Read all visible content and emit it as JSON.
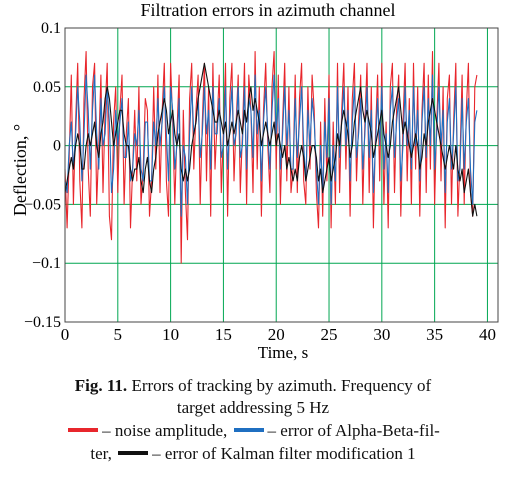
{
  "chart_data": {
    "type": "line",
    "title": "Filtration errors in azimuth channel",
    "xlabel": "Time, s",
    "ylabel": "Deflection, °",
    "xlim": [
      0,
      41
    ],
    "ylim": [
      -0.15,
      0.1
    ],
    "x_ticks": [
      "0",
      "5",
      "10",
      "15",
      "20",
      "25",
      "30",
      "35",
      "40"
    ],
    "x_tick_values": [
      0,
      5,
      10,
      15,
      20,
      25,
      30,
      35,
      40
    ],
    "y_ticks": [
      "0.1",
      "0.05",
      "0",
      "−0.05",
      "−0.1",
      "−0.15"
    ],
    "y_tick_values": [
      0.1,
      0.05,
      0,
      -0.05,
      -0.1,
      -0.15
    ],
    "grid": true,
    "grid_color": "#00a651",
    "series": [
      {
        "name": "noise amplitude",
        "color": "#e8262c",
        "x_step": 0.2,
        "values": [
          -0.02,
          -0.07,
          -0.01,
          0.06,
          -0.05,
          0.02,
          0.07,
          -0.03,
          -0.07,
          0.04,
          0.08,
          -0.02,
          -0.06,
          0.05,
          0.07,
          -0.05,
          0.0,
          0.06,
          -0.04,
          0.03,
          0.07,
          -0.06,
          -0.08,
          0.02,
          0.05,
          -0.04,
          0.03,
          0.06,
          -0.05,
          0.01,
          0.04,
          -0.07,
          -0.02,
          0.03,
          -0.03,
          0.05,
          -0.05,
          -0.02,
          0.04,
          0.03,
          -0.06,
          -0.03,
          0.05,
          -0.02,
          0.06,
          -0.04,
          0.03,
          0.07,
          -0.03,
          -0.06,
          0.07,
          0.02,
          -0.05,
          0.01,
          0.06,
          -0.1,
          0.03,
          -0.04,
          -0.08,
          0.04,
          0.07,
          -0.02,
          0.03,
          0.06,
          -0.05,
          0.02,
          0.07,
          -0.03,
          0.05,
          -0.06,
          0.07,
          -0.02,
          0.02,
          0.06,
          -0.04,
          0.01,
          0.07,
          -0.06,
          0.04,
          0.07,
          -0.03,
          0.02,
          0.06,
          -0.04,
          0.01,
          0.07,
          -0.05,
          0.06,
          0.03,
          -0.04,
          0.08,
          -0.02,
          0.05,
          -0.06,
          0.03,
          0.07,
          0.0,
          -0.04,
          0.05,
          0.08,
          -0.02,
          0.06,
          -0.05,
          0.02,
          0.07,
          -0.03,
          0.05,
          -0.04,
          -0.02,
          0.06,
          -0.04,
          0.04,
          0.07,
          -0.03,
          -0.05,
          0.05,
          -0.02,
          0.06,
          0.03,
          -0.04,
          -0.07,
          0.02,
          -0.06,
          0.04,
          -0.03,
          0.06,
          -0.07,
          0.02,
          -0.05,
          0.07,
          -0.04,
          0.03,
          0.07,
          -0.02,
          0.05,
          -0.06,
          0.04,
          0.07,
          -0.03,
          0.02,
          0.06,
          -0.05,
          0.02,
          0.07,
          -0.04,
          0.05,
          -0.07,
          0.01,
          0.06,
          -0.03,
          0.07,
          -0.05,
          0.02,
          -0.07,
          0.05,
          0.07,
          -0.04,
          0.03,
          0.06,
          -0.06,
          0.02,
          0.07,
          -0.03,
          0.04,
          -0.05,
          0.07,
          -0.02,
          0.05,
          -0.06,
          0.03,
          0.07,
          -0.04,
          0.06,
          -0.02,
          0.08,
          -0.05,
          0.02,
          0.07,
          -0.03,
          0.05,
          -0.07,
          0.04,
          0.06,
          -0.05,
          0.02,
          0.07,
          -0.06,
          -0.01,
          0.06,
          -0.05,
          0.03,
          0.07,
          -0.04,
          -0.06,
          0.05,
          0.06
        ]
      },
      {
        "name": "error of Alpha-Beta-filter",
        "color": "#1f6fc1",
        "x_step": 0.2,
        "values": [
          -0.03,
          -0.04,
          0.0,
          0.02,
          -0.02,
          0.01,
          0.05,
          0.02,
          -0.03,
          0.01,
          0.06,
          0.03,
          -0.02,
          0.03,
          0.06,
          0.01,
          -0.02,
          0.04,
          0.0,
          0.01,
          0.05,
          0.02,
          -0.04,
          -0.02,
          0.03,
          0.0,
          0.02,
          0.04,
          -0.01,
          -0.01,
          0.02,
          -0.03,
          -0.02,
          0.01,
          0.0,
          0.03,
          -0.02,
          -0.03,
          0.02,
          0.02,
          -0.03,
          -0.03,
          0.02,
          0.0,
          0.04,
          0.0,
          0.02,
          0.05,
          0.01,
          -0.03,
          0.05,
          0.03,
          -0.02,
          0.0,
          0.04,
          -0.06,
          0.0,
          -0.01,
          -0.05,
          0.01,
          0.05,
          0.01,
          0.02,
          0.04,
          -0.01,
          0.01,
          0.05,
          0.01,
          0.03,
          -0.02,
          0.05,
          0.01,
          0.01,
          0.04,
          -0.01,
          0.0,
          0.05,
          -0.02,
          0.02,
          0.05,
          0.0,
          0.01,
          0.05,
          -0.01,
          0.0,
          0.05,
          -0.02,
          0.04,
          0.03,
          -0.01,
          0.06,
          0.01,
          0.03,
          -0.03,
          0.02,
          0.05,
          0.01,
          -0.02,
          0.03,
          0.06,
          0.01,
          0.04,
          -0.02,
          0.01,
          0.05,
          0.0,
          0.03,
          -0.02,
          -0.02,
          0.04,
          -0.01,
          0.02,
          0.05,
          0.0,
          -0.03,
          0.03,
          0.0,
          0.04,
          0.02,
          -0.02,
          -0.05,
          0.0,
          -0.04,
          0.02,
          -0.01,
          0.04,
          -0.05,
          0.0,
          -0.03,
          0.05,
          -0.01,
          0.02,
          0.05,
          0.0,
          0.03,
          -0.03,
          0.02,
          0.05,
          -0.01,
          0.01,
          0.04,
          -0.02,
          0.01,
          0.05,
          -0.01,
          0.03,
          -0.04,
          0.0,
          0.04,
          0.0,
          0.05,
          -0.02,
          0.01,
          -0.04,
          0.03,
          0.05,
          -0.01,
          0.02,
          0.04,
          -0.03,
          0.0,
          0.05,
          0.0,
          0.03,
          -0.02,
          0.05,
          0.0,
          0.03,
          -0.03,
          0.02,
          0.05,
          -0.01,
          0.04,
          0.0,
          0.06,
          -0.02,
          0.01,
          0.05,
          0.0,
          0.03,
          -0.04,
          0.02,
          0.04,
          -0.02,
          0.01,
          0.05,
          -0.03,
          -0.02,
          0.04,
          -0.02,
          0.02,
          0.04,
          -0.02,
          -0.05,
          0.02,
          0.03
        ]
      },
      {
        "name": "error of Kalman filter modification 1",
        "color": "#111111",
        "x_step": 0.2,
        "values": [
          -0.04,
          -0.03,
          -0.02,
          -0.01,
          -0.02,
          0.0,
          0.01,
          0.0,
          -0.02,
          -0.02,
          0.0,
          0.01,
          0.0,
          0.01,
          0.02,
          0.0,
          -0.01,
          0.01,
          0.02,
          0.04,
          0.05,
          0.04,
          0.02,
          0.0,
          0.01,
          0.02,
          0.03,
          0.03,
          0.01,
          0.0,
          0.0,
          -0.02,
          -0.03,
          -0.02,
          -0.02,
          -0.01,
          -0.03,
          -0.04,
          -0.02,
          -0.01,
          -0.03,
          -0.04,
          -0.02,
          -0.01,
          0.01,
          0.02,
          0.03,
          0.04,
          0.03,
          0.01,
          0.02,
          0.03,
          0.01,
          0.0,
          0.01,
          -0.02,
          -0.03,
          -0.02,
          -0.03,
          -0.02,
          0.0,
          0.01,
          0.02,
          0.04,
          0.05,
          0.06,
          0.07,
          0.06,
          0.05,
          0.04,
          0.03,
          0.02,
          0.02,
          0.03,
          0.02,
          0.01,
          0.02,
          0.0,
          0.01,
          0.02,
          0.01,
          0.02,
          0.03,
          0.02,
          0.01,
          0.03,
          0.02,
          0.04,
          0.05,
          0.03,
          0.04,
          0.03,
          0.02,
          0.0,
          0.01,
          0.02,
          0.01,
          0.0,
          0.01,
          0.02,
          0.0,
          0.01,
          0.0,
          -0.01,
          0.0,
          -0.02,
          -0.01,
          -0.02,
          -0.03,
          -0.02,
          -0.03,
          -0.01,
          0.0,
          -0.01,
          -0.03,
          -0.02,
          -0.01,
          0.0,
          0.0,
          -0.01,
          -0.03,
          -0.02,
          -0.04,
          -0.03,
          -0.02,
          -0.01,
          -0.03,
          -0.02,
          -0.01,
          0.01,
          0.0,
          0.02,
          0.03,
          0.02,
          0.01,
          -0.01,
          0.0,
          0.02,
          0.03,
          0.04,
          0.05,
          0.03,
          0.02,
          0.03,
          0.02,
          0.01,
          -0.01,
          0.0,
          0.01,
          0.02,
          0.03,
          0.01,
          0.0,
          -0.01,
          0.0,
          0.02,
          0.03,
          0.04,
          0.05,
          0.03,
          0.01,
          0.02,
          0.01,
          0.0,
          -0.01,
          0.0,
          0.01,
          0.0,
          -0.02,
          -0.01,
          0.01,
          0.0,
          0.02,
          0.03,
          0.04,
          0.03,
          0.02,
          0.01,
          0.0,
          -0.01,
          -0.02,
          -0.01,
          0.0,
          -0.01,
          -0.02,
          0.0,
          -0.02,
          -0.03,
          -0.02,
          -0.04,
          -0.03,
          -0.02,
          -0.04,
          -0.06,
          -0.05,
          -0.06
        ]
      }
    ]
  },
  "caption": {
    "fig_label": "Fig. 11.",
    "line1": " Errors of tracking by azimuth. Frequency of",
    "line2": "target addressing 5 Hz",
    "legend_noise": "– noise amplitude,",
    "legend_ab": "– error of Alpha-Beta-fil-",
    "legend_ab_cont": "ter,",
    "legend_kalman": "– error of Kalman filter modification 1"
  }
}
